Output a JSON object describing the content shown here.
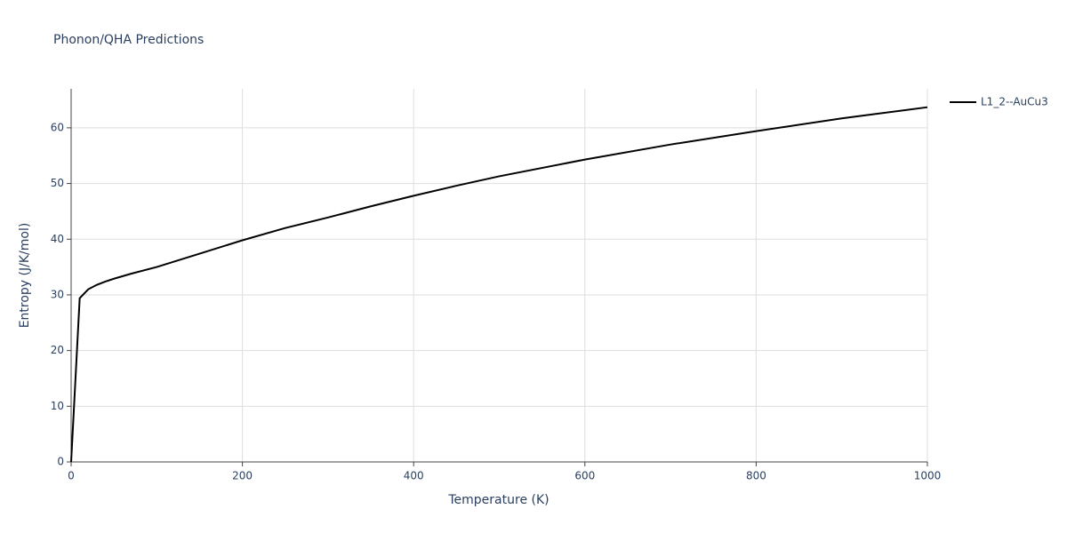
{
  "chart_data": {
    "type": "line",
    "title": "Phonon/QHA Predictions",
    "x_label": "Temperature (K)",
    "y_label": "Entropy (J/K/mol)",
    "x": [
      0,
      10,
      20,
      30,
      40,
      50,
      70,
      100,
      150,
      200,
      250,
      300,
      350,
      400,
      450,
      500,
      600,
      700,
      800,
      900,
      1000
    ],
    "series": [
      {
        "name": "L1_2--AuCu3",
        "color": "#000000",
        "values": [
          0,
          29.4,
          31,
          31.8,
          32.4,
          32.9,
          33.8,
          35,
          37.4,
          39.8,
          42,
          43.9,
          45.9,
          47.8,
          49.6,
          51.3,
          54.3,
          57,
          59.4,
          61.7,
          63.7
        ]
      }
    ],
    "xlim": [
      0,
      1000
    ],
    "xticks": [
      0,
      200,
      400,
      600,
      800,
      1000
    ],
    "ylim": [
      0,
      67
    ],
    "yticks": [
      0,
      10,
      20,
      30,
      40,
      50,
      60
    ],
    "grid": true,
    "legend": "right"
  }
}
